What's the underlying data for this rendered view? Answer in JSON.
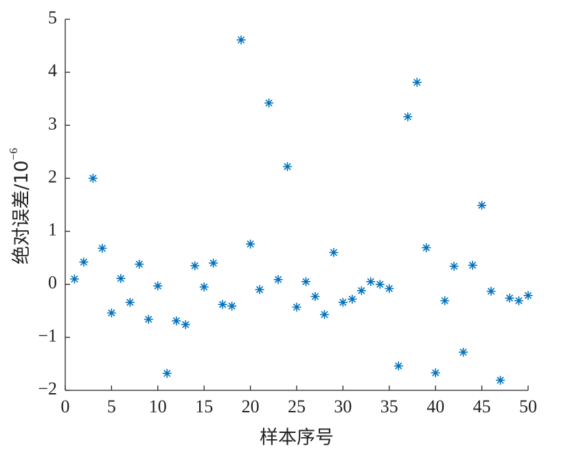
{
  "chart_data": {
    "type": "scatter",
    "xlabel": "样本序号",
    "ylabel": {
      "text": "绝对误差/10",
      "exponent": "−6"
    },
    "series": [
      {
        "color": "#0072bd",
        "marker": "asterisk",
        "x": [
          1,
          2,
          3,
          4,
          5,
          6,
          7,
          8,
          9,
          10,
          11,
          12,
          13,
          14,
          15,
          16,
          17,
          18,
          19,
          20,
          21,
          22,
          23,
          24,
          25,
          26,
          27,
          28,
          29,
          30,
          31,
          32,
          33,
          34,
          35,
          36,
          37,
          38,
          39,
          40,
          41,
          42,
          43,
          44,
          45,
          46,
          47,
          48,
          49,
          50
        ],
        "values": [
          0.1,
          0.42,
          2.0,
          0.68,
          -0.54,
          0.11,
          -0.34,
          0.38,
          -0.66,
          -0.03,
          -1.68,
          -0.69,
          -0.76,
          0.35,
          -0.05,
          0.4,
          -0.38,
          -0.41,
          4.61,
          0.76,
          -0.1,
          3.42,
          0.09,
          2.22,
          -0.43,
          0.05,
          -0.23,
          -0.57,
          0.6,
          -0.34,
          -0.28,
          -0.12,
          0.05,
          0.0,
          -0.08,
          -1.54,
          3.16,
          3.81,
          0.69,
          -1.67,
          -0.31,
          0.34,
          -1.28,
          0.36,
          1.49,
          -0.13,
          -1.81,
          -0.26,
          -0.31,
          -0.21
        ]
      }
    ],
    "xlim": [
      0,
      50
    ],
    "xticks": [
      0,
      5,
      10,
      15,
      20,
      25,
      30,
      35,
      40,
      45,
      50
    ],
    "ylim": [
      -2,
      5
    ],
    "yticks": [
      {
        "value": -2,
        "label": "−2"
      },
      {
        "value": -1,
        "label": "−1"
      },
      0,
      1,
      2,
      3,
      4,
      5
    ]
  }
}
